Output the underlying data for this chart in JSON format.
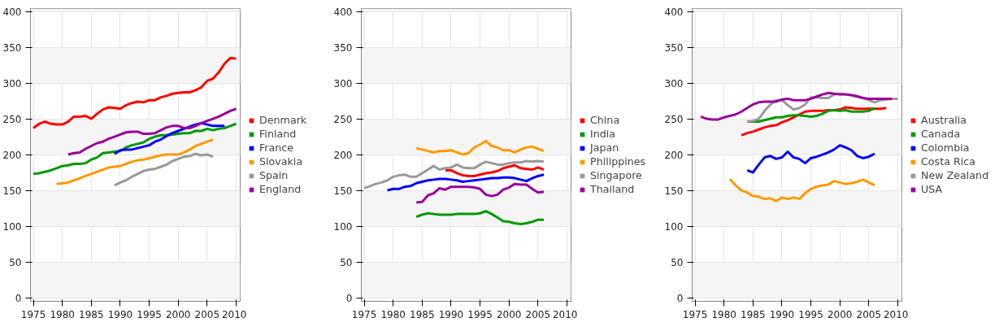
{
  "chart_data": [
    {
      "type": "line",
      "xlim": [
        1974.5,
        2010.7
      ],
      "ylim": [
        -4,
        405
      ],
      "xticks": [
        1975,
        1980,
        1985,
        1990,
        1995,
        2000,
        2005,
        2010
      ],
      "yticks": [
        0,
        50,
        100,
        150,
        200,
        250,
        300,
        350,
        400
      ],
      "grid": true,
      "legend": "right",
      "marker": "none",
      "line_style": "solid",
      "series": [
        {
          "name": "Denmark",
          "color": "#ff0000",
          "x": [
            1975,
            1976,
            1977,
            1978,
            1979,
            1980,
            1981,
            1982,
            1983,
            1984,
            1985,
            1986,
            1987,
            1988,
            1989,
            1990,
            1991,
            1992,
            1993,
            1994,
            1995,
            1996,
            1997,
            1998,
            1999,
            2000,
            2001,
            2002,
            2003,
            2004,
            2005,
            2006,
            2007,
            2008,
            2009,
            2010
          ],
          "values": [
            238,
            244,
            247,
            244,
            243,
            243,
            247,
            254,
            254,
            255,
            251,
            258,
            264,
            267,
            266,
            265,
            270,
            273,
            275,
            274,
            277,
            277,
            281,
            283,
            286,
            287,
            288,
            288,
            291,
            295,
            304,
            307,
            316,
            328,
            336,
            335
          ]
        },
        {
          "name": "Finland",
          "color": "#009900",
          "x": [
            1975,
            1976,
            1977,
            1978,
            1979,
            1980,
            1981,
            1982,
            1983,
            1984,
            1985,
            1986,
            1987,
            1988,
            1989,
            1990,
            1991,
            1992,
            1993,
            1994,
            1995,
            1996,
            1997,
            1998,
            1999,
            2000,
            2001,
            2002,
            2003,
            2004,
            2005,
            2006,
            2007,
            2008,
            2009,
            2010
          ],
          "values": [
            174,
            175,
            177,
            179,
            182,
            185,
            186,
            188,
            188,
            189,
            194,
            197,
            203,
            204,
            205,
            206,
            211,
            214,
            216,
            218,
            223,
            226,
            228,
            228,
            229,
            230,
            231,
            231,
            234,
            234,
            237,
            235,
            237,
            238,
            241,
            244
          ]
        },
        {
          "name": "France",
          "color": "#0000ff",
          "x": [
            1989,
            1990,
            1991,
            1992,
            1993,
            1994,
            1995,
            1996,
            1997,
            1998,
            1999,
            2000,
            2001,
            2002,
            2003,
            2004,
            2005,
            2006,
            2007,
            2008
          ],
          "values": [
            202,
            207,
            208,
            208,
            210,
            212,
            214,
            219,
            222,
            227,
            231,
            234,
            237,
            240,
            243,
            245,
            243,
            241,
            241,
            241
          ]
        },
        {
          "name": "Slovakia",
          "color": "#ff9900",
          "x": [
            1979,
            1980,
            1981,
            1982,
            1983,
            1984,
            1985,
            1986,
            1987,
            1988,
            1989,
            1990,
            1991,
            1992,
            1993,
            1994,
            1995,
            1996,
            1997,
            1998,
            1999,
            2000,
            2001,
            2002,
            2003,
            2004,
            2005,
            2006
          ],
          "values": [
            160,
            161,
            162,
            165,
            168,
            171,
            174,
            177,
            180,
            183,
            184,
            185,
            188,
            191,
            193,
            194,
            196,
            198,
            200,
            201,
            201,
            201,
            204,
            208,
            213,
            216,
            219,
            222
          ]
        },
        {
          "name": "Spain",
          "color": "#999999",
          "x": [
            1989,
            1990,
            1991,
            1992,
            1993,
            1994,
            1995,
            1996,
            1997,
            1998,
            1999,
            2000,
            2001,
            2002,
            2003,
            2004,
            2005,
            2006
          ],
          "values": [
            158,
            162,
            165,
            170,
            174,
            178,
            180,
            181,
            184,
            187,
            192,
            195,
            198,
            199,
            202,
            200,
            201,
            198
          ]
        },
        {
          "name": "England",
          "color": "#990099",
          "x": [
            1981,
            1982,
            1983,
            1984,
            1985,
            1986,
            1987,
            1988,
            1989,
            1990,
            1991,
            1992,
            1993,
            1994,
            1995,
            1996,
            1997,
            1998,
            1999,
            2000,
            2001,
            2002,
            2003,
            2004,
            2005,
            2006,
            2007,
            2008,
            2009,
            2010
          ],
          "values": [
            201,
            203,
            204,
            209,
            213,
            217,
            219,
            223,
            226,
            229,
            232,
            233,
            233,
            230,
            230,
            231,
            235,
            239,
            241,
            241,
            238,
            238,
            241,
            245,
            248,
            251,
            254,
            258,
            262,
            265
          ]
        }
      ]
    },
    {
      "type": "line",
      "xlim": [
        1974.5,
        2010.7
      ],
      "ylim": [
        -4,
        405
      ],
      "xticks": [
        1975,
        1980,
        1985,
        1990,
        1995,
        2000,
        2005,
        2010
      ],
      "yticks": [
        0,
        50,
        100,
        150,
        200,
        250,
        300,
        350,
        400
      ],
      "grid": true,
      "legend": "right",
      "marker": "none",
      "line_style": "solid",
      "series": [
        {
          "name": "China",
          "color": "#ff0000",
          "x": [
            1989,
            1990,
            1991,
            1992,
            1993,
            1994,
            1995,
            1996,
            1997,
            1998,
            1999,
            2000,
            2001,
            2002,
            2003,
            2004,
            2005,
            2006
          ],
          "values": [
            179,
            179,
            175,
            172,
            171,
            171,
            173,
            175,
            176,
            178,
            182,
            184,
            186,
            182,
            181,
            180,
            183,
            180
          ]
        },
        {
          "name": "India",
          "color": "#009900",
          "x": [
            1984,
            1985,
            1986,
            1987,
            1988,
            1989,
            1990,
            1991,
            1992,
            1993,
            1994,
            1995,
            1996,
            1997,
            1998,
            1999,
            2000,
            2001,
            2002,
            2003,
            2004,
            2005,
            2006
          ],
          "values": [
            114,
            117,
            119,
            118,
            117,
            117,
            117,
            118,
            118,
            118,
            118,
            119,
            122,
            118,
            113,
            108,
            107,
            105,
            104,
            105,
            107,
            110,
            110
          ]
        },
        {
          "name": "Japan",
          "color": "#0000ff",
          "x": [
            1979,
            1980,
            1981,
            1982,
            1983,
            1984,
            1985,
            1986,
            1987,
            1988,
            1989,
            1990,
            1991,
            1992,
            1993,
            1994,
            1995,
            1996,
            1997,
            1998,
            1999,
            2000,
            2001,
            2002,
            2003,
            2004,
            2005,
            2006
          ],
          "values": [
            151,
            153,
            153,
            156,
            157,
            161,
            163,
            165,
            166,
            167,
            167,
            166,
            165,
            163,
            164,
            165,
            166,
            167,
            168,
            168,
            169,
            169,
            168,
            166,
            164,
            168,
            171,
            173
          ]
        },
        {
          "name": "Philippines",
          "color": "#ff9900",
          "x": [
            1984,
            1985,
            1986,
            1987,
            1988,
            1989,
            1990,
            1991,
            1992,
            1993,
            1994,
            1995,
            1996,
            1997,
            1998,
            1999,
            2000,
            2001,
            2002,
            2003,
            2004,
            2005,
            2006
          ],
          "values": [
            210,
            208,
            206,
            204,
            206,
            206,
            207,
            204,
            201,
            203,
            211,
            215,
            220,
            213,
            211,
            207,
            207,
            204,
            208,
            211,
            212,
            209,
            206
          ]
        },
        {
          "name": "Singapore",
          "color": "#999999",
          "x": [
            1975,
            1976,
            1977,
            1978,
            1979,
            1980,
            1981,
            1982,
            1983,
            1984,
            1985,
            1986,
            1987,
            1988,
            1989,
            1990,
            1991,
            1992,
            1993,
            1994,
            1995,
            1996,
            1997,
            1998,
            1999,
            2000,
            2001,
            2002,
            2003,
            2004,
            2005,
            2006
          ],
          "values": [
            154,
            157,
            160,
            162,
            165,
            170,
            172,
            173,
            170,
            170,
            175,
            180,
            185,
            180,
            182,
            183,
            187,
            183,
            182,
            182,
            187,
            191,
            189,
            187,
            187,
            189,
            190,
            190,
            192,
            191,
            192,
            191
          ]
        },
        {
          "name": "Thailand",
          "color": "#990099",
          "x": [
            1984,
            1985,
            1986,
            1987,
            1988,
            1989,
            1990,
            1991,
            1992,
            1993,
            1994,
            1995,
            1996,
            1997,
            1998,
            1999,
            2000,
            2001,
            2002,
            2003,
            2004,
            2005,
            2006
          ],
          "values": [
            134,
            135,
            144,
            147,
            154,
            152,
            156,
            156,
            156,
            156,
            155,
            153,
            145,
            143,
            145,
            152,
            155,
            160,
            159,
            159,
            153,
            148,
            149
          ]
        }
      ]
    },
    {
      "type": "line",
      "xlim": [
        1974.5,
        2010.7
      ],
      "ylim": [
        -4,
        405
      ],
      "xticks": [
        1975,
        1980,
        1985,
        1990,
        1995,
        2000,
        2005,
        2010
      ],
      "yticks": [
        0,
        50,
        100,
        150,
        200,
        250,
        300,
        350,
        400
      ],
      "grid": true,
      "legend": "right",
      "marker": "none",
      "line_style": "solid",
      "series": [
        {
          "name": "Australia",
          "color": "#ff0000",
          "x": [
            1983,
            1984,
            1985,
            1986,
            1987,
            1988,
            1989,
            1990,
            1991,
            1992,
            1993,
            1994,
            1995,
            1996,
            1997,
            1998,
            1999,
            2000,
            2001,
            2002,
            2003,
            2004,
            2005,
            2006,
            2007,
            2008
          ],
          "values": [
            228,
            231,
            233,
            236,
            239,
            241,
            242,
            246,
            249,
            253,
            257,
            261,
            262,
            262,
            262,
            263,
            263,
            264,
            267,
            266,
            265,
            265,
            265,
            265,
            265,
            266
          ]
        },
        {
          "name": "Canada",
          "color": "#009900",
          "x": [
            1984,
            1985,
            1986,
            1987,
            1988,
            1989,
            1990,
            1991,
            1992,
            1993,
            1994,
            1995,
            1996,
            1997,
            1998,
            1999,
            2000,
            2001,
            2002,
            2003,
            2004,
            2005,
            2006
          ],
          "values": [
            247,
            247,
            247,
            249,
            251,
            253,
            253,
            255,
            256,
            256,
            255,
            254,
            255,
            258,
            262,
            263,
            262,
            263,
            261,
            261,
            261,
            262,
            266
          ]
        },
        {
          "name": "Colombia",
          "color": "#0000ff",
          "x": [
            1984,
            1985,
            1986,
            1987,
            1988,
            1989,
            1990,
            1991,
            1992,
            1993,
            1994,
            1995,
            1996,
            1997,
            1998,
            1999,
            2000,
            2001,
            2002,
            2003,
            2004,
            2005,
            2006
          ],
          "values": [
            179,
            176,
            187,
            197,
            199,
            195,
            197,
            205,
            197,
            195,
            189,
            196,
            198,
            201,
            204,
            208,
            214,
            211,
            207,
            199,
            196,
            198,
            202
          ]
        },
        {
          "name": "Costa Rica",
          "color": "#ff9900",
          "x": [
            1981,
            1982,
            1983,
            1984,
            1985,
            1986,
            1987,
            1988,
            1989,
            1990,
            1991,
            1992,
            1993,
            1994,
            1995,
            1996,
            1997,
            1998,
            1999,
            2000,
            2001,
            2002,
            2003,
            2004,
            2005,
            2006
          ],
          "values": [
            167,
            158,
            151,
            148,
            143,
            142,
            139,
            140,
            136,
            141,
            139,
            141,
            139,
            147,
            153,
            156,
            158,
            159,
            164,
            162,
            160,
            161,
            163,
            166,
            162,
            158
          ]
        },
        {
          "name": "New Zealand",
          "color": "#999999",
          "x": [
            1984,
            1985,
            1986,
            1987,
            1988,
            1989,
            1990,
            1991,
            1992,
            1993,
            1994,
            1995,
            1996,
            1997,
            1998,
            1999,
            2000,
            2001,
            2002,
            2003,
            2004,
            2005,
            2006,
            2007,
            2008,
            2009,
            2010
          ],
          "values": [
            247,
            248,
            251,
            262,
            271,
            277,
            277,
            270,
            264,
            266,
            271,
            281,
            281,
            280,
            280,
            285,
            286,
            285,
            284,
            283,
            280,
            277,
            274,
            277,
            278,
            279,
            279
          ]
        },
        {
          "name": "USA",
          "color": "#990099",
          "x": [
            1976,
            1977,
            1978,
            1979,
            1980,
            1981,
            1982,
            1983,
            1984,
            1985,
            1986,
            1987,
            1988,
            1989,
            1990,
            1991,
            1992,
            1993,
            1994,
            1995,
            1996,
            1997,
            1998,
            1999,
            2000,
            2001,
            2002,
            2003,
            2004,
            2005,
            2006,
            2007,
            2008,
            2009
          ],
          "values": [
            254,
            251,
            250,
            250,
            253,
            255,
            257,
            261,
            266,
            271,
            274,
            275,
            275,
            275,
            278,
            279,
            277,
            277,
            277,
            279,
            282,
            285,
            287,
            286,
            285,
            285,
            284,
            282,
            280,
            279,
            279,
            279,
            279,
            279
          ]
        }
      ]
    }
  ]
}
